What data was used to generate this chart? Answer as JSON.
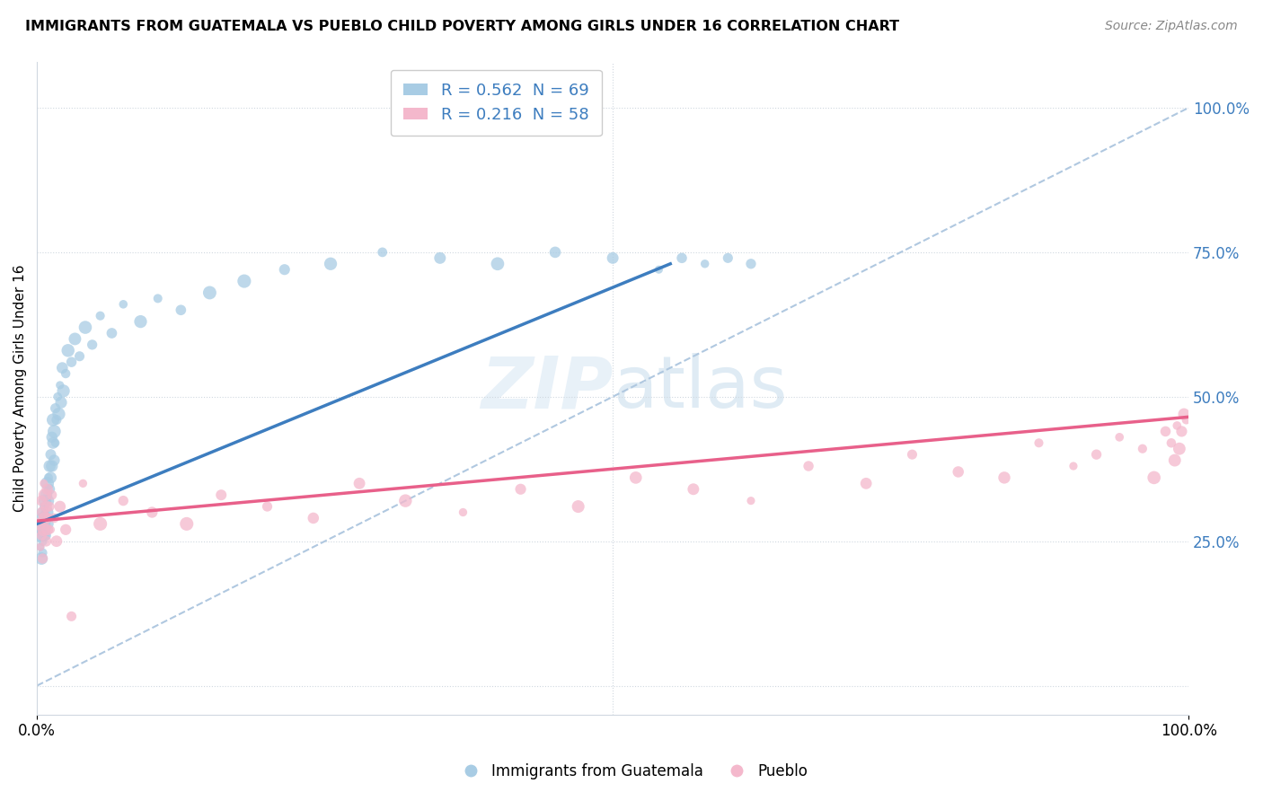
{
  "title": "IMMIGRANTS FROM GUATEMALA VS PUEBLO CHILD POVERTY AMONG GIRLS UNDER 16 CORRELATION CHART",
  "source": "Source: ZipAtlas.com",
  "ylabel": "Child Poverty Among Girls Under 16",
  "blue_legend_label": "R = 0.562  N = 69",
  "pink_legend_label": "R = 0.216  N = 58",
  "blue_color": "#a8cce4",
  "pink_color": "#f4b8cc",
  "blue_line_color": "#3d7dbf",
  "pink_line_color": "#e8608a",
  "diag_color": "#b0c8e0",
  "grid_color": "#d0d8e0",
  "legend_items": [
    "Immigrants from Guatemala",
    "Pueblo"
  ],
  "blue_scatter_x": [
    0.002,
    0.003,
    0.003,
    0.004,
    0.004,
    0.004,
    0.005,
    0.005,
    0.005,
    0.006,
    0.006,
    0.006,
    0.007,
    0.007,
    0.007,
    0.008,
    0.008,
    0.008,
    0.009,
    0.009,
    0.01,
    0.01,
    0.01,
    0.011,
    0.011,
    0.012,
    0.012,
    0.013,
    0.013,
    0.014,
    0.014,
    0.015,
    0.015,
    0.016,
    0.016,
    0.017,
    0.018,
    0.019,
    0.02,
    0.021,
    0.022,
    0.023,
    0.025,
    0.027,
    0.03,
    0.033,
    0.037,
    0.042,
    0.048,
    0.055,
    0.065,
    0.075,
    0.09,
    0.105,
    0.125,
    0.15,
    0.18,
    0.215,
    0.255,
    0.3,
    0.35,
    0.4,
    0.45,
    0.5,
    0.54,
    0.56,
    0.58,
    0.6,
    0.62
  ],
  "blue_scatter_y": [
    0.26,
    0.24,
    0.28,
    0.22,
    0.27,
    0.3,
    0.25,
    0.29,
    0.23,
    0.31,
    0.26,
    0.28,
    0.3,
    0.27,
    0.32,
    0.29,
    0.33,
    0.26,
    0.35,
    0.3,
    0.32,
    0.36,
    0.28,
    0.38,
    0.34,
    0.4,
    0.36,
    0.43,
    0.38,
    0.42,
    0.46,
    0.39,
    0.44,
    0.48,
    0.42,
    0.46,
    0.5,
    0.47,
    0.52,
    0.49,
    0.55,
    0.51,
    0.54,
    0.58,
    0.56,
    0.6,
    0.57,
    0.62,
    0.59,
    0.64,
    0.61,
    0.66,
    0.63,
    0.67,
    0.65,
    0.68,
    0.7,
    0.72,
    0.73,
    0.75,
    0.74,
    0.73,
    0.75,
    0.74,
    0.72,
    0.74,
    0.73,
    0.74,
    0.73
  ],
  "pink_scatter_x": [
    0.002,
    0.003,
    0.004,
    0.004,
    0.005,
    0.005,
    0.006,
    0.006,
    0.007,
    0.007,
    0.008,
    0.008,
    0.009,
    0.009,
    0.01,
    0.011,
    0.012,
    0.013,
    0.015,
    0.017,
    0.02,
    0.025,
    0.03,
    0.04,
    0.055,
    0.075,
    0.1,
    0.13,
    0.16,
    0.2,
    0.24,
    0.28,
    0.32,
    0.37,
    0.42,
    0.47,
    0.52,
    0.57,
    0.62,
    0.67,
    0.72,
    0.76,
    0.8,
    0.84,
    0.87,
    0.9,
    0.92,
    0.94,
    0.96,
    0.97,
    0.98,
    0.985,
    0.988,
    0.99,
    0.992,
    0.994,
    0.996,
    0.998
  ],
  "pink_scatter_y": [
    0.28,
    0.24,
    0.32,
    0.26,
    0.3,
    0.22,
    0.35,
    0.27,
    0.29,
    0.33,
    0.25,
    0.31,
    0.34,
    0.27,
    0.29,
    0.31,
    0.27,
    0.33,
    0.29,
    0.25,
    0.31,
    0.27,
    0.12,
    0.35,
    0.28,
    0.32,
    0.3,
    0.28,
    0.33,
    0.31,
    0.29,
    0.35,
    0.32,
    0.3,
    0.34,
    0.31,
    0.36,
    0.34,
    0.32,
    0.38,
    0.35,
    0.4,
    0.37,
    0.36,
    0.42,
    0.38,
    0.4,
    0.43,
    0.41,
    0.36,
    0.44,
    0.42,
    0.39,
    0.45,
    0.41,
    0.44,
    0.47,
    0.46
  ],
  "blue_trend_x": [
    0.0,
    0.55
  ],
  "blue_trend_y_start": 0.28,
  "blue_trend_y_end": 0.73,
  "pink_trend_x": [
    0.0,
    1.0
  ],
  "pink_trend_y_start": 0.285,
  "pink_trend_y_end": 0.465,
  "xlim": [
    0,
    1.0
  ],
  "ylim": [
    -0.05,
    1.08
  ],
  "ytick_positions": [
    0.0,
    0.25,
    0.5,
    0.75,
    1.0
  ],
  "ytick_labels": [
    "",
    "25.0%",
    "50.0%",
    "75.0%",
    "100.0%"
  ]
}
